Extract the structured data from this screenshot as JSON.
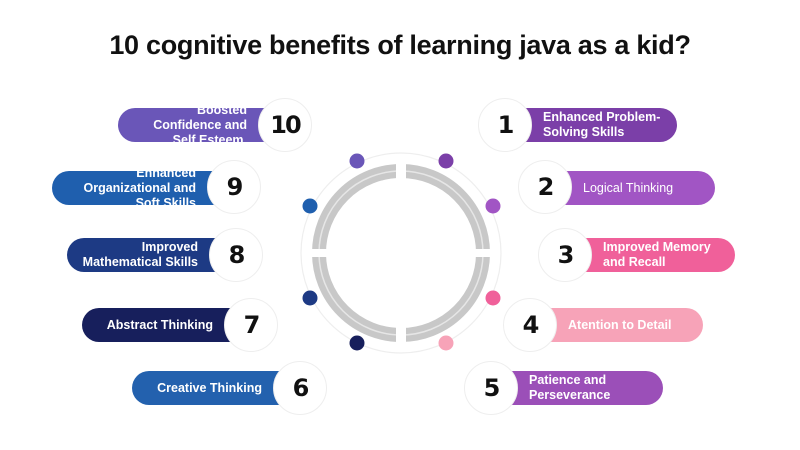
{
  "title": "10 cognitive benefits of learning java as a kid?",
  "items": [
    {
      "n": "1",
      "label": "Enhanced Problem-Solving Skills",
      "color": "#7b3fa8"
    },
    {
      "n": "2",
      "label": "Logical Thinking",
      "color": "#a155c4"
    },
    {
      "n": "3",
      "label": "Improved Memory and Recall",
      "color": "#f0609a"
    },
    {
      "n": "4",
      "label": "Atention to Detail",
      "color": "#f7a3b8"
    },
    {
      "n": "5",
      "label": "Patience and Perseverance",
      "color": "#9b4fb8"
    },
    {
      "n": "6",
      "label": "Creative Thinking",
      "color": "#2361ae"
    },
    {
      "n": "7",
      "label": "Abstract Thinking",
      "color": "#171f5c"
    },
    {
      "n": "8",
      "label": "Improved Mathematical Skills",
      "color": "#1d3a84"
    },
    {
      "n": "9",
      "label": "Enhanced Organizational and Soft Skills",
      "color": "#1f5fae"
    },
    {
      "n": "10",
      "label": "Boosted Confidence and Self Esteem.",
      "color": "#6a56b8"
    }
  ]
}
